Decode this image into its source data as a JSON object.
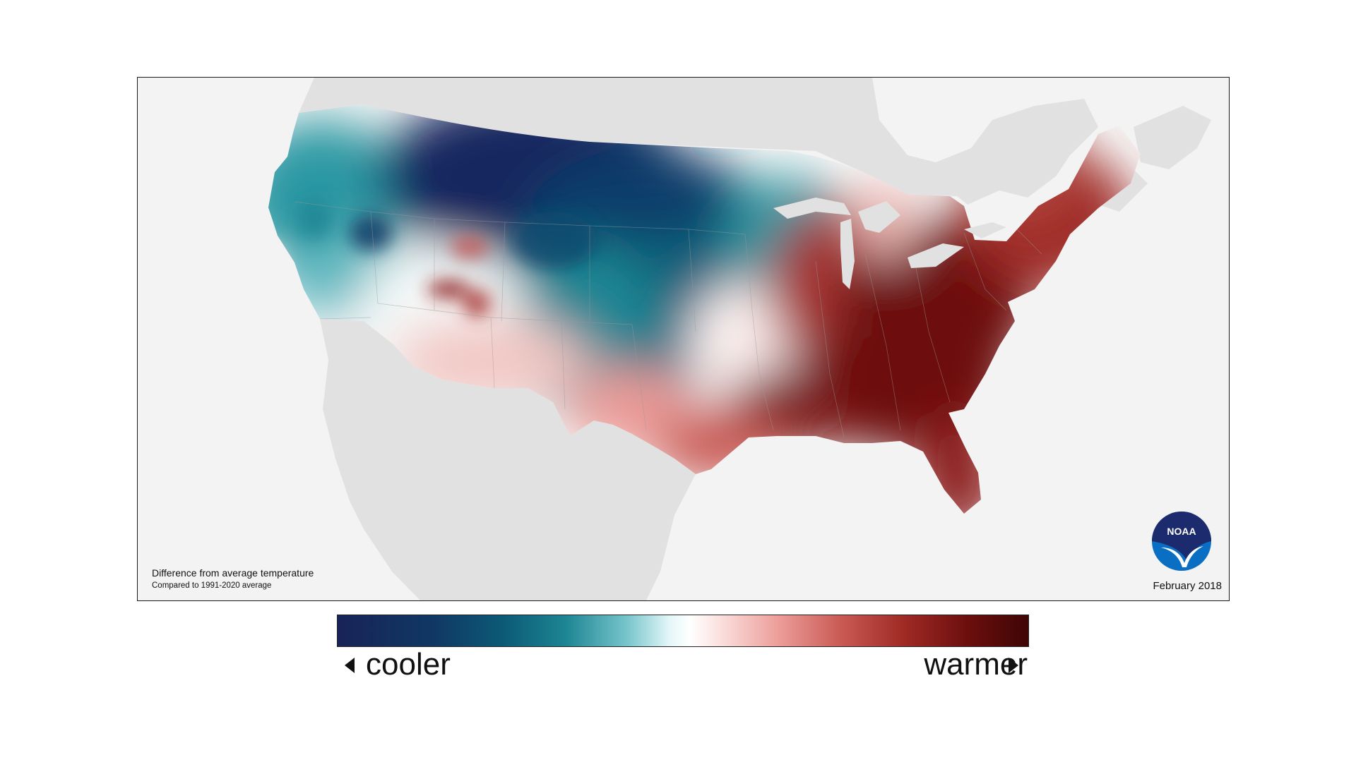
{
  "map": {
    "caption_title": "Difference from average temperature",
    "caption_subtitle": "Compared to 1991-2020 average",
    "date": "February 2018",
    "logo_text": "NOAA"
  },
  "legend": {
    "cooler_label": "cooler",
    "warmer_label": "warmer"
  },
  "colors": {
    "cool_extreme": "#182357",
    "cool_mid": "#1d8593",
    "neutral": "#ffffff",
    "warm_mid": "#c95953",
    "warm_extreme": "#3f0505",
    "land_outside": "#e1e1e1",
    "ocean": "#f3f3f3",
    "logo_blue": "#0a6fc2",
    "logo_navy": "#1b2b6d"
  }
}
